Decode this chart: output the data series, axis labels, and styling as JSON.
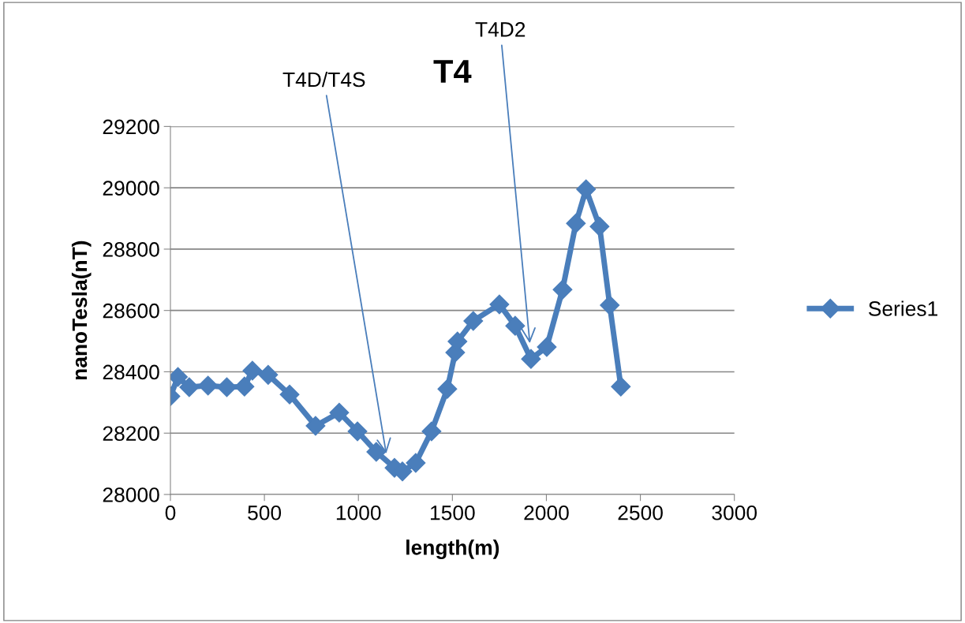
{
  "chart_data": {
    "type": "line",
    "title": "T4",
    "xlabel": "length(m)",
    "ylabel": "nanoTesla(nT)",
    "x": [
      0,
      40,
      100,
      200,
      300,
      394,
      436,
      520,
      634,
      772,
      898,
      995,
      1095,
      1192,
      1234,
      1305,
      1389,
      1473,
      1515,
      1527,
      1611,
      1750,
      1834,
      1918,
      2002,
      2086,
      2157,
      2211,
      2283,
      2337,
      2396
    ],
    "series": [
      {
        "name": "Series1",
        "color": "#4a7ebb",
        "values": [
          28320,
          28383,
          28350,
          28355,
          28350,
          28352,
          28404,
          28390,
          28326,
          28224,
          28267,
          28206,
          28139,
          28087,
          28075,
          28103,
          28206,
          28344,
          28463,
          28499,
          28566,
          28620,
          28550,
          28442,
          28481,
          28668,
          28884,
          28995,
          28874,
          28617,
          28352
        ]
      }
    ],
    "xlim": [
      0,
      3000
    ],
    "xticks": [
      0,
      500,
      1000,
      1500,
      2000,
      2500,
      3000
    ],
    "ylim": [
      28000,
      29200
    ],
    "yticks": [
      28000,
      28200,
      28400,
      28600,
      28800,
      29000,
      29200
    ],
    "grid": "y",
    "legend": "right",
    "marker": "diamond",
    "line_style": "solid",
    "annotations": [
      {
        "text": "T4D/T4S",
        "x": 1150,
        "y": 28126
      },
      {
        "text": "T4D2",
        "x": 1913,
        "y": 28486
      }
    ]
  }
}
